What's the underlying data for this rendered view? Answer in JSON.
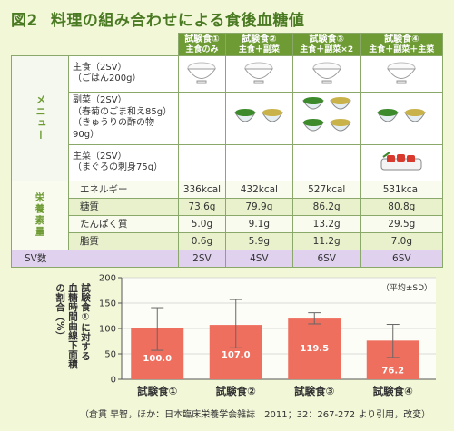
{
  "title": {
    "fig": "図2",
    "text": "料理の組み合わせによる食後血糖値"
  },
  "columns": [
    {
      "name": "試験食①",
      "desc": "主食のみ"
    },
    {
      "name": "試験食②",
      "desc": "主食＋副菜"
    },
    {
      "name": "試験食③",
      "desc": "主食＋副菜×2"
    },
    {
      "name": "試験食④",
      "desc": "主食＋副菜＋主菜"
    }
  ],
  "menu_side_label": "メニュー",
  "menu_rows": [
    {
      "label1": "主食（2SV）",
      "label2": "（ごはん200g）"
    },
    {
      "label1": "副菜（2SV）",
      "label2": "（春菊のごま和え85g）",
      "label3": "（きゅうりの酢の物90g）"
    },
    {
      "label1": "主菜（2SV）",
      "label2": "（まぐろの刺身75g）"
    }
  ],
  "nutri_side_label": "栄養素量",
  "nutrients": [
    {
      "label": "エネルギー",
      "values": [
        "336kcal",
        "432kcal",
        "527kcal",
        "531kcal"
      ]
    },
    {
      "label": "糖質",
      "values": [
        "73.6g",
        "79.9g",
        "86.2g",
        "80.8g"
      ]
    },
    {
      "label": "たんぱく質",
      "values": [
        "5.0g",
        "9.1g",
        "13.2g",
        "29.5g"
      ]
    },
    {
      "label": "脂質",
      "values": [
        "0.6g",
        "5.9g",
        "11.2g",
        "7.0g"
      ]
    }
  ],
  "sv": {
    "label": "SV数",
    "values": [
      "2SV",
      "4SV",
      "6SV",
      "6SV"
    ]
  },
  "colors": {
    "bar": "#ef6f5f",
    "green": "#6e9b34"
  },
  "chart_data": {
    "type": "bar",
    "categories": [
      "試験食①",
      "試験食②",
      "試験食③",
      "試験食④"
    ],
    "values": [
      100.0,
      107.0,
      119.5,
      76.2
    ],
    "value_labels": [
      "100.0",
      "107.0",
      "119.5",
      "76.2"
    ],
    "error_low": [
      57,
      62,
      109,
      43
    ],
    "error_high": [
      141,
      157,
      131,
      108
    ],
    "ylabel_lines": [
      "試験食①に対する",
      "血糖時間曲線下面積",
      "の割合（%）"
    ],
    "yticks": [
      "0",
      "50",
      "100",
      "150",
      "200"
    ],
    "ylim": [
      0,
      200
    ],
    "note": "（平均±SD）"
  },
  "citation": "（倉貫 早智，ほか：日本臨床栄養学会雑誌　2011；32：267-272 より引用，改変）"
}
